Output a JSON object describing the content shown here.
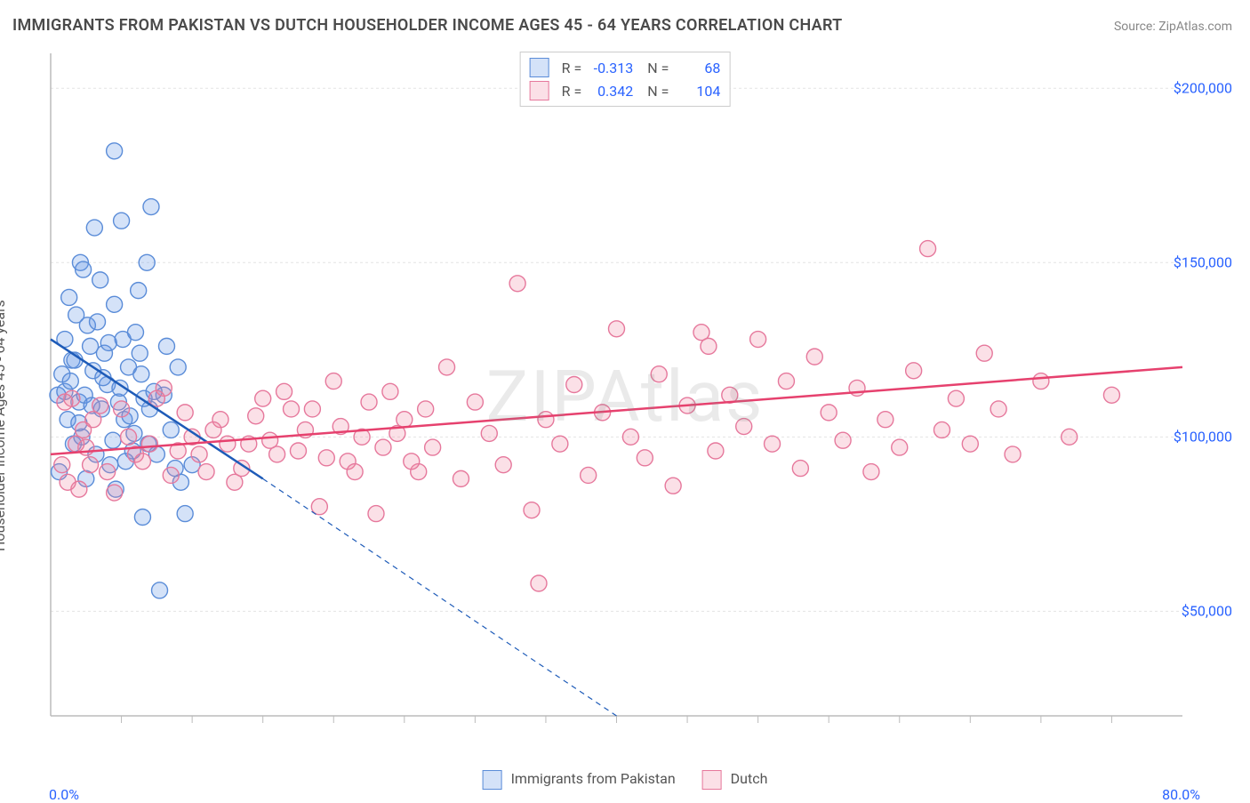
{
  "title": "IMMIGRANTS FROM PAKISTAN VS DUTCH HOUSEHOLDER INCOME AGES 45 - 64 YEARS CORRELATION CHART",
  "source": "Source: ZipAtlas.com",
  "ylabel": "Householder Income Ages 45 - 64 years",
  "watermark": "ZIPAtlas",
  "chart": {
    "type": "scatter",
    "xlim": [
      0,
      80
    ],
    "ylim": [
      20000,
      210000
    ],
    "x_tick_label_min": "0.0%",
    "x_tick_label_max": "80.0%",
    "y_gridlines": [
      50000,
      100000,
      150000,
      200000
    ],
    "y_tick_labels": [
      "$50,000",
      "$100,000",
      "$150,000",
      "$200,000"
    ],
    "x_minor_ticks": [
      5,
      10,
      15,
      20,
      25,
      30,
      35,
      40,
      45,
      50,
      55,
      60,
      65,
      70,
      75
    ],
    "background_color": "#ffffff",
    "grid_color": "#e3e3e3",
    "axis_color": "#bbbbbb",
    "marker_radius": 9,
    "marker_stroke_width": 1.4,
    "line_width": 2.5,
    "series": [
      {
        "name": "Immigrants from Pakistan",
        "fill": "rgba(100,150,230,0.28)",
        "stroke": "#5a8cd8",
        "line_color": "#1e5bb8",
        "r": -0.313,
        "n": 68,
        "trend": {
          "x1": 0,
          "y1": 128000,
          "x2_solid": 15,
          "y2_solid": 88000,
          "x2_dash": 40,
          "y2_dash": 20000
        },
        "points": [
          [
            0.5,
            112000
          ],
          [
            0.6,
            90000
          ],
          [
            0.8,
            118000
          ],
          [
            1.0,
            128000
          ],
          [
            1.2,
            105000
          ],
          [
            1.3,
            140000
          ],
          [
            1.5,
            122000
          ],
          [
            1.6,
            98000
          ],
          [
            1.8,
            135000
          ],
          [
            2.0,
            110000
          ],
          [
            2.1,
            150000
          ],
          [
            2.2,
            100000
          ],
          [
            2.3,
            148000
          ],
          [
            2.5,
            88000
          ],
          [
            2.6,
            132000
          ],
          [
            2.8,
            126000
          ],
          [
            3.0,
            119000
          ],
          [
            3.1,
            160000
          ],
          [
            3.2,
            95000
          ],
          [
            3.5,
            145000
          ],
          [
            3.6,
            108000
          ],
          [
            3.8,
            124000
          ],
          [
            4.0,
            115000
          ],
          [
            4.2,
            92000
          ],
          [
            4.5,
            138000
          ],
          [
            4.5,
            182000
          ],
          [
            4.6,
            85000
          ],
          [
            4.8,
            110000
          ],
          [
            5.0,
            162000
          ],
          [
            5.1,
            128000
          ],
          [
            5.2,
            105000
          ],
          [
            5.5,
            120000
          ],
          [
            5.8,
            96000
          ],
          [
            6.0,
            130000
          ],
          [
            6.2,
            142000
          ],
          [
            6.4,
            118000
          ],
          [
            6.5,
            77000
          ],
          [
            6.8,
            150000
          ],
          [
            7.0,
            108000
          ],
          [
            7.1,
            166000
          ],
          [
            7.5,
            95000
          ],
          [
            7.7,
            56000
          ],
          [
            8.0,
            112000
          ],
          [
            8.2,
            126000
          ],
          [
            8.5,
            102000
          ],
          [
            8.8,
            91000
          ],
          [
            9.0,
            120000
          ],
          [
            9.2,
            87000
          ],
          [
            9.5,
            78000
          ],
          [
            10.0,
            92000
          ],
          [
            1.0,
            113000
          ],
          [
            1.4,
            116000
          ],
          [
            1.7,
            122000
          ],
          [
            2.0,
            104000
          ],
          [
            2.4,
            112000
          ],
          [
            2.9,
            109000
          ],
          [
            3.3,
            133000
          ],
          [
            3.7,
            117000
          ],
          [
            4.1,
            127000
          ],
          [
            4.4,
            99000
          ],
          [
            4.9,
            114000
          ],
          [
            5.3,
            93000
          ],
          [
            5.6,
            106000
          ],
          [
            5.9,
            101000
          ],
          [
            6.3,
            124000
          ],
          [
            6.6,
            111000
          ],
          [
            6.9,
            98000
          ],
          [
            7.3,
            113000
          ]
        ]
      },
      {
        "name": "Dutch",
        "fill": "rgba(240,130,160,0.25)",
        "stroke": "#e6789c",
        "line_color": "#e6416e",
        "r": 0.342,
        "n": 104,
        "trend": {
          "x1": 0,
          "y1": 95000,
          "x2_solid": 80,
          "y2_solid": 120000
        },
        "points": [
          [
            0.8,
            92000
          ],
          [
            1.5,
            111000
          ],
          [
            2.0,
            85000
          ],
          [
            2.5,
            97000
          ],
          [
            3.0,
            105000
          ],
          [
            4.0,
            90000
          ],
          [
            5.0,
            108000
          ],
          [
            6.0,
            95000
          ],
          [
            7.0,
            98000
          ],
          [
            8.0,
            114000
          ],
          [
            9.0,
            96000
          ],
          [
            10.0,
            100000
          ],
          [
            11.0,
            90000
          ],
          [
            12.0,
            105000
          ],
          [
            13.0,
            87000
          ],
          [
            14.0,
            98000
          ],
          [
            15.0,
            111000
          ],
          [
            16.0,
            95000
          ],
          [
            17.0,
            108000
          ],
          [
            18.0,
            102000
          ],
          [
            19.0,
            80000
          ],
          [
            20.0,
            116000
          ],
          [
            21.0,
            93000
          ],
          [
            22.0,
            100000
          ],
          [
            23.0,
            78000
          ],
          [
            24.0,
            113000
          ],
          [
            25.0,
            105000
          ],
          [
            26.0,
            90000
          ],
          [
            27.0,
            97000
          ],
          [
            28.0,
            120000
          ],
          [
            29.0,
            88000
          ],
          [
            30.0,
            110000
          ],
          [
            31.0,
            101000
          ],
          [
            32.0,
            92000
          ],
          [
            33.0,
            144000
          ],
          [
            34.0,
            79000
          ],
          [
            34.5,
            58000
          ],
          [
            35.0,
            105000
          ],
          [
            36.0,
            98000
          ],
          [
            37.0,
            115000
          ],
          [
            38.0,
            89000
          ],
          [
            39.0,
            107000
          ],
          [
            40.0,
            131000
          ],
          [
            41.0,
            100000
          ],
          [
            42.0,
            94000
          ],
          [
            43.0,
            118000
          ],
          [
            44.0,
            86000
          ],
          [
            45.0,
            109000
          ],
          [
            46.0,
            130000
          ],
          [
            46.5,
            126000
          ],
          [
            47.0,
            96000
          ],
          [
            48.0,
            112000
          ],
          [
            49.0,
            103000
          ],
          [
            50.0,
            128000
          ],
          [
            51.0,
            98000
          ],
          [
            52.0,
            116000
          ],
          [
            53.0,
            91000
          ],
          [
            54.0,
            123000
          ],
          [
            55.0,
            107000
          ],
          [
            56.0,
            99000
          ],
          [
            57.0,
            114000
          ],
          [
            58.0,
            90000
          ],
          [
            59.0,
            105000
          ],
          [
            60.0,
            97000
          ],
          [
            61.0,
            119000
          ],
          [
            62.0,
            154000
          ],
          [
            63.0,
            102000
          ],
          [
            64.0,
            111000
          ],
          [
            65.0,
            98000
          ],
          [
            66.0,
            124000
          ],
          [
            67.0,
            108000
          ],
          [
            68.0,
            95000
          ],
          [
            70.0,
            116000
          ],
          [
            72.0,
            100000
          ],
          [
            75.0,
            112000
          ],
          [
            1.0,
            110000
          ],
          [
            1.2,
            87000
          ],
          [
            1.8,
            98000
          ],
          [
            2.3,
            102000
          ],
          [
            2.8,
            92000
          ],
          [
            3.5,
            109000
          ],
          [
            4.5,
            84000
          ],
          [
            5.5,
            100000
          ],
          [
            6.5,
            93000
          ],
          [
            7.5,
            111000
          ],
          [
            8.5,
            89000
          ],
          [
            9.5,
            107000
          ],
          [
            10.5,
            95000
          ],
          [
            11.5,
            102000
          ],
          [
            12.5,
            98000
          ],
          [
            13.5,
            91000
          ],
          [
            14.5,
            106000
          ],
          [
            15.5,
            99000
          ],
          [
            16.5,
            113000
          ],
          [
            17.5,
            96000
          ],
          [
            18.5,
            108000
          ],
          [
            19.5,
            94000
          ],
          [
            20.5,
            103000
          ],
          [
            21.5,
            90000
          ],
          [
            22.5,
            110000
          ],
          [
            23.5,
            97000
          ],
          [
            24.5,
            101000
          ],
          [
            25.5,
            93000
          ],
          [
            26.5,
            108000
          ]
        ]
      }
    ]
  },
  "bottom_legend": [
    {
      "label": "Immigrants from Pakistan",
      "fill": "rgba(100,150,230,0.4)",
      "stroke": "#5a8cd8"
    },
    {
      "label": "Dutch",
      "fill": "rgba(240,130,160,0.4)",
      "stroke": "#e6789c"
    }
  ]
}
